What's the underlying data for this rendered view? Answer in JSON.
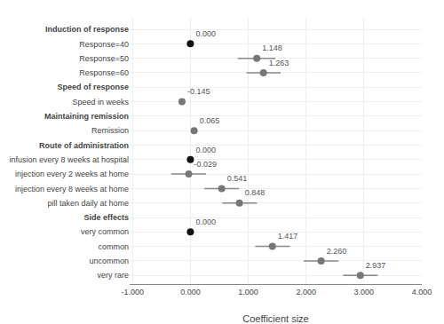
{
  "chart_data": {
    "type": "forest",
    "xlabel": "Coefficient size",
    "xlim": [
      -1.05,
      4.0
    ],
    "xticks": [
      {
        "value": -1.0,
        "label": "-1.000"
      },
      {
        "value": 0.0,
        "label": "0.000"
      },
      {
        "value": 1.0,
        "label": "1.000"
      },
      {
        "value": 2.0,
        "label": "2.000"
      },
      {
        "value": 3.0,
        "label": "3.000"
      },
      {
        "value": 4.0,
        "label": "4.000"
      }
    ],
    "grid": true,
    "data_labels": true,
    "groups": [
      {
        "header": "Induction of response",
        "categories": [
          "Response=40",
          "Response=50",
          "Response=60"
        ],
        "values": [
          0.0,
          1.148,
          1.263
        ],
        "value_labels": [
          "0.000",
          "1.148",
          "1.263"
        ],
        "ci_lo": [
          0.0,
          0.82,
          0.97
        ],
        "ci_hi": [
          0.0,
          1.47,
          1.56
        ],
        "colors": [
          "#111111",
          "#777777",
          "#777777"
        ]
      },
      {
        "header": "Speed of response",
        "categories": [
          "Speed in weeks"
        ],
        "values": [
          -0.145
        ],
        "value_labels": [
          "-0.145"
        ],
        "ci_lo": [
          -0.145
        ],
        "ci_hi": [
          -0.145
        ],
        "colors": [
          "#777777"
        ]
      },
      {
        "header": "Maintaining remission",
        "categories": [
          "Remission"
        ],
        "values": [
          0.065
        ],
        "value_labels": [
          "0.065"
        ],
        "ci_lo": [
          0.065
        ],
        "ci_hi": [
          0.065
        ],
        "colors": [
          "#777777"
        ]
      },
      {
        "header": "Route of administration",
        "categories": [
          "infusion every 8 weeks at hospital",
          "injection every 2 weeks at home",
          "injection every 8 weeks at home",
          "pill taken daily at home"
        ],
        "values": [
          0.0,
          -0.029,
          0.541,
          0.848
        ],
        "value_labels": [
          "0.000",
          "-0.029",
          "0.541",
          "0.848"
        ],
        "ci_lo": [
          0.0,
          -0.33,
          0.24,
          0.55
        ],
        "ci_hi": [
          0.0,
          0.27,
          0.84,
          1.15
        ],
        "colors": [
          "#111111",
          "#777777",
          "#777777",
          "#777777"
        ]
      },
      {
        "header": "Side effects",
        "categories": [
          "very common",
          "common",
          "uncommon",
          "very rare"
        ],
        "values": [
          0.0,
          1.417,
          2.26,
          2.937
        ],
        "value_labels": [
          "0.000",
          "1.417",
          "2.260",
          "2.937"
        ],
        "ci_lo": [
          0.0,
          1.12,
          1.96,
          2.64
        ],
        "ci_hi": [
          0.0,
          1.72,
          2.56,
          3.24
        ],
        "colors": [
          "#111111",
          "#777777",
          "#777777",
          "#777777"
        ]
      }
    ]
  }
}
